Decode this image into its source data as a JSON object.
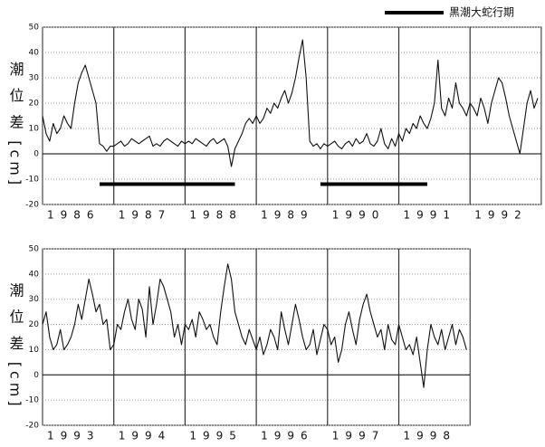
{
  "chart_data": [
    {
      "type": "line",
      "y_label": "潮 位 差 [cm]",
      "legend": {
        "label": "黒潮大蛇行期",
        "color": "#000000",
        "periods": [
          [
            1986.8,
            1988.7
          ],
          [
            1989.9,
            1991.4
          ]
        ]
      },
      "xlim": [
        1986,
        1993
      ],
      "xticks": [
        1986,
        1987,
        1988,
        1989,
        1990,
        1991,
        1992
      ],
      "ylim": [
        -20,
        50
      ],
      "yticks": [
        -20,
        -10,
        0,
        10,
        20,
        30,
        40,
        50
      ],
      "grid": true,
      "x": [
        1986,
        1986.05,
        1986.1,
        1986.15,
        1986.2,
        1986.25,
        1986.3,
        1986.35,
        1986.4,
        1986.45,
        1986.5,
        1986.55,
        1986.6,
        1986.65,
        1986.7,
        1986.75,
        1986.8,
        1986.85,
        1986.9,
        1986.95,
        1987,
        1987.05,
        1987.1,
        1987.15,
        1987.2,
        1987.25,
        1987.3,
        1987.35,
        1987.4,
        1987.45,
        1987.5,
        1987.55,
        1987.6,
        1987.65,
        1987.7,
        1987.75,
        1987.8,
        1987.85,
        1987.9,
        1987.95,
        1988,
        1988.05,
        1988.1,
        1988.15,
        1988.2,
        1988.25,
        1988.3,
        1988.35,
        1988.4,
        1988.45,
        1988.5,
        1988.55,
        1988.6,
        1988.65,
        1988.7,
        1988.75,
        1988.8,
        1988.85,
        1988.9,
        1988.95,
        1989,
        1989.05,
        1989.1,
        1989.15,
        1989.2,
        1989.25,
        1989.3,
        1989.35,
        1989.4,
        1989.45,
        1989.5,
        1989.55,
        1989.6,
        1989.65,
        1989.7,
        1989.75,
        1989.8,
        1989.85,
        1989.9,
        1989.95,
        1990,
        1990.05,
        1990.1,
        1990.15,
        1990.2,
        1990.25,
        1990.3,
        1990.35,
        1990.4,
        1990.45,
        1990.5,
        1990.55,
        1990.6,
        1990.65,
        1990.7,
        1990.75,
        1990.8,
        1990.85,
        1990.9,
        1990.95,
        1991,
        1991.05,
        1991.1,
        1991.15,
        1991.2,
        1991.25,
        1991.3,
        1991.35,
        1991.4,
        1991.45,
        1991.5,
        1991.55,
        1991.6,
        1991.65,
        1991.7,
        1991.75,
        1991.8,
        1991.85,
        1991.9,
        1991.95,
        1992,
        1992.05,
        1992.1,
        1992.15,
        1992.2,
        1992.25,
        1992.3,
        1992.35,
        1992.4,
        1992.45,
        1992.5,
        1992.55,
        1992.6,
        1992.65,
        1992.7,
        1992.75,
        1992.8,
        1992.85,
        1992.9,
        1992.95
      ],
      "series": [
        {
          "color": "#111111",
          "values": [
            15,
            8,
            5,
            12,
            8,
            10,
            15,
            12,
            10,
            20,
            28,
            32,
            35,
            30,
            25,
            20,
            4,
            3,
            1,
            3,
            3,
            4,
            5,
            3,
            4,
            6,
            5,
            4,
            5,
            6,
            7,
            3,
            4,
            3,
            5,
            6,
            5,
            4,
            3,
            5,
            4,
            5,
            4,
            6,
            5,
            4,
            3,
            5,
            6,
            4,
            5,
            6,
            3,
            -5,
            2,
            5,
            8,
            12,
            14,
            12,
            15,
            12,
            14,
            18,
            16,
            20,
            18,
            22,
            25,
            20,
            24,
            30,
            38,
            45,
            30,
            5,
            3,
            4,
            2,
            4,
            3,
            4,
            5,
            3,
            2,
            4,
            5,
            3,
            6,
            4,
            5,
            8,
            4,
            3,
            5,
            10,
            4,
            2,
            6,
            3,
            8,
            5,
            10,
            8,
            12,
            10,
            15,
            12,
            10,
            14,
            20,
            37,
            18,
            15,
            22,
            18,
            28,
            20,
            18,
            15,
            20,
            18,
            15,
            22,
            18,
            12,
            20,
            25,
            30,
            28,
            22,
            15,
            10,
            5,
            0,
            10,
            20,
            25,
            18,
            22
          ]
        }
      ]
    },
    {
      "type": "line",
      "y_label": "潮 位 差 [cm]",
      "xlim": [
        1993,
        1999
      ],
      "xticks": [
        1993,
        1994,
        1995,
        1996,
        1997,
        1998
      ],
      "ylim": [
        -20,
        50
      ],
      "yticks": [
        -20,
        -10,
        0,
        10,
        20,
        30,
        40,
        50
      ],
      "grid": true,
      "x": [
        1993,
        1993.05,
        1993.1,
        1993.15,
        1993.2,
        1993.25,
        1993.3,
        1993.35,
        1993.4,
        1993.45,
        1993.5,
        1993.55,
        1993.6,
        1993.65,
        1993.7,
        1993.75,
        1993.8,
        1993.85,
        1993.9,
        1993.95,
        1994,
        1994.05,
        1994.1,
        1994.15,
        1994.2,
        1994.25,
        1994.3,
        1994.35,
        1994.4,
        1994.45,
        1994.5,
        1994.55,
        1994.6,
        1994.65,
        1994.7,
        1994.75,
        1994.8,
        1994.85,
        1994.9,
        1994.95,
        1995,
        1995.05,
        1995.1,
        1995.15,
        1995.2,
        1995.25,
        1995.3,
        1995.35,
        1995.4,
        1995.45,
        1995.5,
        1995.55,
        1995.6,
        1995.65,
        1995.7,
        1995.75,
        1995.8,
        1995.85,
        1995.9,
        1995.95,
        1996,
        1996.05,
        1996.1,
        1996.15,
        1996.2,
        1996.25,
        1996.3,
        1996.35,
        1996.4,
        1996.45,
        1996.5,
        1996.55,
        1996.6,
        1996.65,
        1996.7,
        1996.75,
        1996.8,
        1996.85,
        1996.9,
        1996.95,
        1997,
        1997.05,
        1997.1,
        1997.15,
        1997.2,
        1997.25,
        1997.3,
        1997.35,
        1997.4,
        1997.45,
        1997.5,
        1997.55,
        1997.6,
        1997.65,
        1997.7,
        1997.75,
        1997.8,
        1997.85,
        1997.9,
        1997.95,
        1998,
        1998.05,
        1998.1,
        1998.15,
        1998.2,
        1998.25,
        1998.3,
        1998.35,
        1998.4,
        1998.45,
        1998.5,
        1998.55,
        1998.6,
        1998.65,
        1998.7,
        1998.75,
        1998.8,
        1998.85,
        1998.9,
        1998.95
      ],
      "series": [
        {
          "color": "#111111",
          "values": [
            20,
            25,
            15,
            10,
            12,
            18,
            10,
            12,
            15,
            20,
            28,
            22,
            30,
            38,
            32,
            25,
            28,
            20,
            22,
            10,
            12,
            20,
            18,
            25,
            30,
            22,
            18,
            30,
            26,
            15,
            35,
            20,
            28,
            38,
            35,
            30,
            25,
            15,
            20,
            12,
            20,
            18,
            22,
            15,
            25,
            22,
            18,
            20,
            15,
            12,
            25,
            35,
            44,
            38,
            25,
            20,
            15,
            12,
            18,
            14,
            10,
            15,
            8,
            12,
            18,
            15,
            10,
            25,
            18,
            12,
            20,
            28,
            22,
            15,
            10,
            12,
            18,
            8,
            14,
            20,
            18,
            12,
            15,
            5,
            10,
            20,
            25,
            18,
            12,
            22,
            28,
            32,
            25,
            20,
            15,
            18,
            10,
            20,
            14,
            12,
            20,
            15,
            10,
            12,
            8,
            15,
            5,
            -5,
            10,
            20,
            15,
            12,
            18,
            10,
            15,
            20,
            12,
            18,
            15,
            10
          ]
        }
      ]
    }
  ]
}
